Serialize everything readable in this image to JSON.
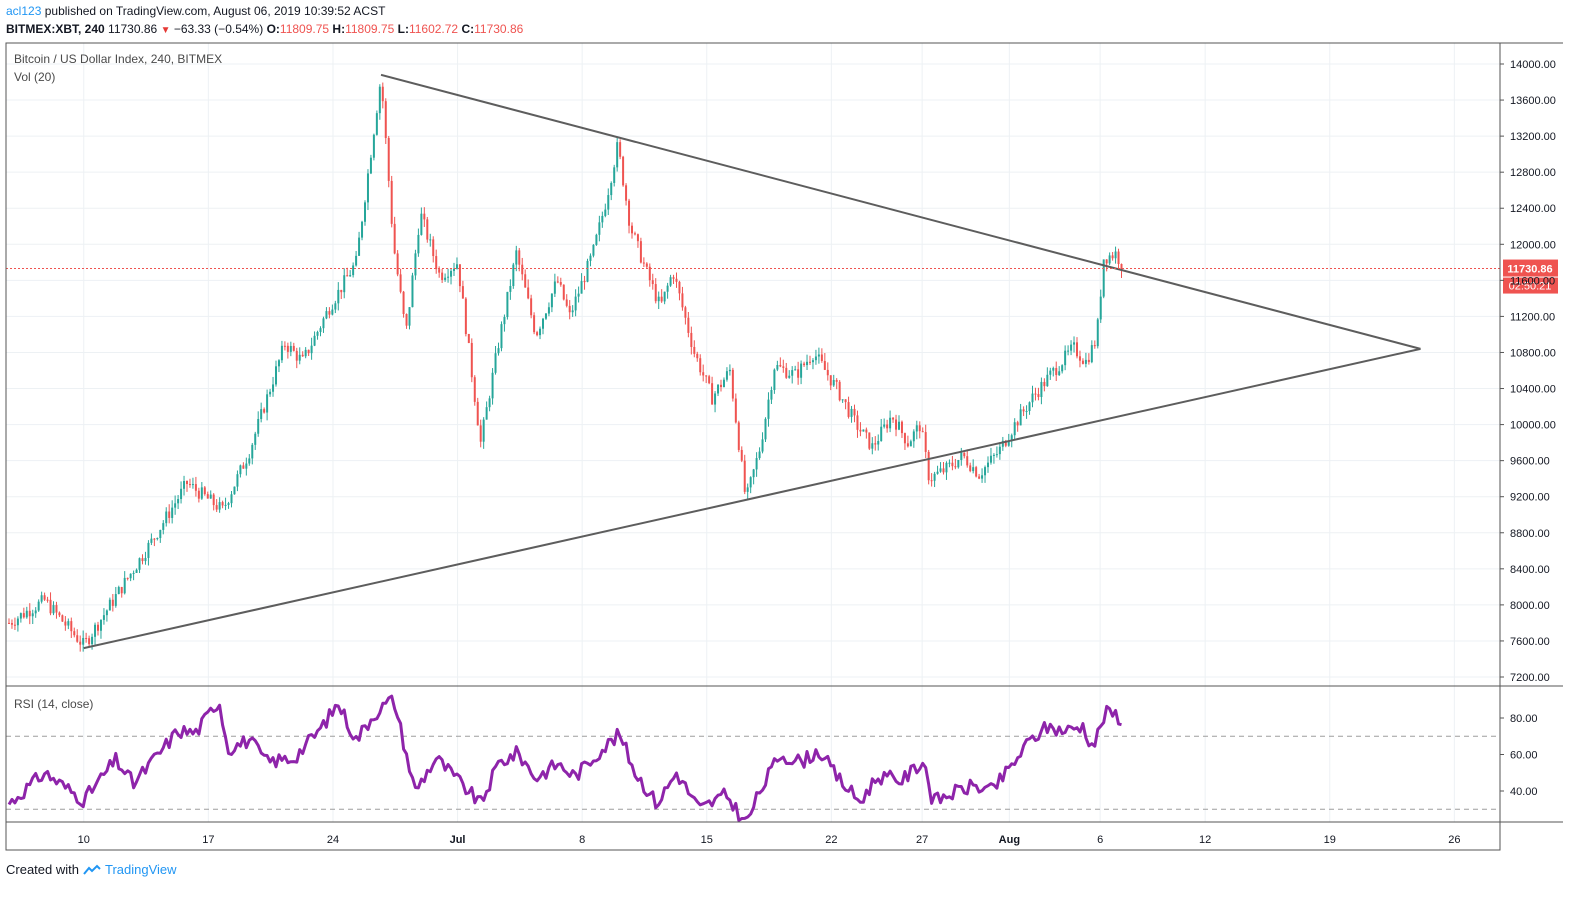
{
  "header": {
    "user": "acl123",
    "published_text": "published on TradingView.com, August 06, 2019 10:39:52 ACST"
  },
  "quote": {
    "symbol": "BITMEX:XBT, 240",
    "last": "11730.86",
    "change_arrow": "▼",
    "change": "−63.33 (−0.54%)",
    "o_label": "O:",
    "o": "11809.75",
    "h_label": "H:",
    "h": "11809.75",
    "l_label": "L:",
    "l": "11602.72",
    "c_label": "C:",
    "c": "11730.86"
  },
  "chart_data": [
    {
      "type": "candlestick",
      "title": "Bitcoin / US Dollar Index, 240, BITMEX",
      "indicator_label": "Vol (20)",
      "y_axis": {
        "ticks": [
          "14000.00",
          "13600.00",
          "13200.00",
          "12800.00",
          "12400.00",
          "12000.00",
          "11600.00",
          "11200.00",
          "10800.00",
          "10400.00",
          "10000.00",
          "9600.00",
          "9200.00",
          "8800.00",
          "8400.00",
          "8000.00",
          "7600.00",
          "7200.00"
        ],
        "ylim": [
          7050,
          14150
        ]
      },
      "x_axis": {
        "ticks": [
          "10",
          "17",
          "24",
          "Jul",
          "8",
          "15",
          "22",
          "27",
          "Aug",
          "6",
          "12",
          "19",
          "26"
        ],
        "bold_ticks": [
          "Jul",
          "Aug"
        ]
      },
      "price_line": {
        "value": 11730.86,
        "label": "11730.86",
        "countdown": "02:50:21",
        "color": "#ef5350"
      },
      "up_color": "#26a69a",
      "down_color": "#ef5350",
      "trendline_color": "#5d5d5d",
      "grid": true,
      "anchors": [
        {
          "d": 0,
          "p": 7800
        },
        {
          "d": 2,
          "p": 8050
        },
        {
          "d": 4.2,
          "p": 7550
        },
        {
          "d": 8,
          "p": 8700
        },
        {
          "d": 10,
          "p": 9350
        },
        {
          "d": 12,
          "p": 9050
        },
        {
          "d": 13.5,
          "p": 9700
        },
        {
          "d": 15.5,
          "p": 10900
        },
        {
          "d": 16.5,
          "p": 10700
        },
        {
          "d": 18,
          "p": 11300
        },
        {
          "d": 19.5,
          "p": 11800
        },
        {
          "d": 20.9,
          "p": 13860
        },
        {
          "d": 21.6,
          "p": 12000
        },
        {
          "d": 22.3,
          "p": 11000
        },
        {
          "d": 23.1,
          "p": 12350
        },
        {
          "d": 24.2,
          "p": 11650
        },
        {
          "d": 25.2,
          "p": 11800
        },
        {
          "d": 26.5,
          "p": 9800
        },
        {
          "d": 27.5,
          "p": 10900
        },
        {
          "d": 28.5,
          "p": 11900
        },
        {
          "d": 29.6,
          "p": 11000
        },
        {
          "d": 30.8,
          "p": 11600
        },
        {
          "d": 31.5,
          "p": 11200
        },
        {
          "d": 32.8,
          "p": 11900
        },
        {
          "d": 33.5,
          "p": 12450
        },
        {
          "d": 34.2,
          "p": 13100
        },
        {
          "d": 34.9,
          "p": 12200
        },
        {
          "d": 35.8,
          "p": 11700
        },
        {
          "d": 36.6,
          "p": 11300
        },
        {
          "d": 37.3,
          "p": 11700
        },
        {
          "d": 38.5,
          "p": 10800
        },
        {
          "d": 39.5,
          "p": 10300
        },
        {
          "d": 40.5,
          "p": 10600
        },
        {
          "d": 41.4,
          "p": 9150
        },
        {
          "d": 42.2,
          "p": 9750
        },
        {
          "d": 43.0,
          "p": 10650
        },
        {
          "d": 44.2,
          "p": 10550
        },
        {
          "d": 45.2,
          "p": 10800
        },
        {
          "d": 46.5,
          "p": 10400
        },
        {
          "d": 47.6,
          "p": 10000
        },
        {
          "d": 48.5,
          "p": 9750
        },
        {
          "d": 49.6,
          "p": 10100
        },
        {
          "d": 50.5,
          "p": 9800
        },
        {
          "d": 51.2,
          "p": 10000
        },
        {
          "d": 51.7,
          "p": 9400
        },
        {
          "d": 52.6,
          "p": 9500
        },
        {
          "d": 53.6,
          "p": 9650
        },
        {
          "d": 54.5,
          "p": 9450
        },
        {
          "d": 55.6,
          "p": 9700
        },
        {
          "d": 56.5,
          "p": 10000
        },
        {
          "d": 57.5,
          "p": 10300
        },
        {
          "d": 58.5,
          "p": 10550
        },
        {
          "d": 59.8,
          "p": 10850
        },
        {
          "d": 60.5,
          "p": 10700
        },
        {
          "d": 61.1,
          "p": 10950
        },
        {
          "d": 61.5,
          "p": 11850
        },
        {
          "d": 62.2,
          "p": 11900
        },
        {
          "d": 62.6,
          "p": 11730
        }
      ],
      "trendlines": [
        {
          "name": "upper",
          "from": {
            "d": 20.9,
            "p": 13880
          },
          "to": {
            "d": 79.3,
            "p": 10840
          }
        },
        {
          "name": "lower",
          "from": {
            "d": 4.2,
            "p": 7520
          },
          "to": {
            "d": 79.3,
            "p": 10840
          }
        }
      ]
    },
    {
      "type": "line",
      "title": "RSI (14, close)",
      "y_axis": {
        "ticks": [
          "80.00",
          "60.00",
          "40.00"
        ],
        "ylim": [
          20,
          90
        ]
      },
      "levels": [
        70,
        30
      ],
      "color": "#8e24aa",
      "anchors": [
        {
          "d": 0,
          "v": 33
        },
        {
          "d": 2,
          "v": 50
        },
        {
          "d": 4.2,
          "v": 35
        },
        {
          "d": 6,
          "v": 57
        },
        {
          "d": 7,
          "v": 44
        },
        {
          "d": 9.5,
          "v": 73
        },
        {
          "d": 10.5,
          "v": 72
        },
        {
          "d": 11.8,
          "v": 90
        },
        {
          "d": 12.3,
          "v": 63
        },
        {
          "d": 13.5,
          "v": 68
        },
        {
          "d": 14.5,
          "v": 56
        },
        {
          "d": 16,
          "v": 58
        },
        {
          "d": 17.5,
          "v": 74
        },
        {
          "d": 18.5,
          "v": 88
        },
        {
          "d": 19.5,
          "v": 68
        },
        {
          "d": 20.5,
          "v": 82
        },
        {
          "d": 21.6,
          "v": 91
        },
        {
          "d": 22.8,
          "v": 40
        },
        {
          "d": 24,
          "v": 58
        },
        {
          "d": 25,
          "v": 48
        },
        {
          "d": 26.5,
          "v": 33
        },
        {
          "d": 27.5,
          "v": 55
        },
        {
          "d": 28.6,
          "v": 61
        },
        {
          "d": 29.6,
          "v": 47
        },
        {
          "d": 30.8,
          "v": 55
        },
        {
          "d": 31.8,
          "v": 48
        },
        {
          "d": 33.2,
          "v": 62
        },
        {
          "d": 34.3,
          "v": 71
        },
        {
          "d": 35.2,
          "v": 50
        },
        {
          "d": 36.4,
          "v": 33
        },
        {
          "d": 37.5,
          "v": 50
        },
        {
          "d": 38.8,
          "v": 30
        },
        {
          "d": 40.3,
          "v": 38
        },
        {
          "d": 41.4,
          "v": 22
        },
        {
          "d": 42.2,
          "v": 40
        },
        {
          "d": 43.3,
          "v": 60
        },
        {
          "d": 44.5,
          "v": 56
        },
        {
          "d": 45.5,
          "v": 62
        },
        {
          "d": 46.5,
          "v": 48
        },
        {
          "d": 47.8,
          "v": 34
        },
        {
          "d": 48.8,
          "v": 48
        },
        {
          "d": 50.2,
          "v": 46
        },
        {
          "d": 51.4,
          "v": 57
        },
        {
          "d": 51.9,
          "v": 34
        },
        {
          "d": 52.8,
          "v": 38
        },
        {
          "d": 54.2,
          "v": 43
        },
        {
          "d": 55.2,
          "v": 40
        },
        {
          "d": 56.2,
          "v": 52
        },
        {
          "d": 57.3,
          "v": 67
        },
        {
          "d": 58.3,
          "v": 75
        },
        {
          "d": 59.4,
          "v": 73
        },
        {
          "d": 60.3,
          "v": 76
        },
        {
          "d": 60.9,
          "v": 64
        },
        {
          "d": 61.6,
          "v": 83
        },
        {
          "d": 62.2,
          "v": 82
        },
        {
          "d": 62.6,
          "v": 78
        }
      ]
    }
  ],
  "footer": {
    "created_with": "Created with",
    "brand": "TradingView"
  }
}
